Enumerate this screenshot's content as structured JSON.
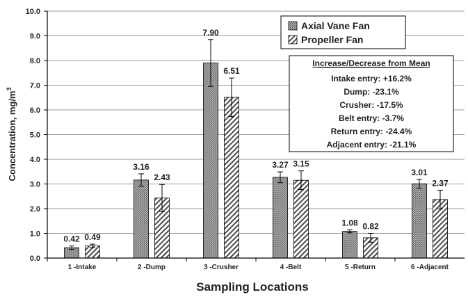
{
  "chart_data": {
    "type": "bar",
    "categories": [
      "1 -Intake",
      "2 -Dump",
      "3 -Crusher",
      "4 -Belt",
      "5 -Return",
      "6 -Adjacent"
    ],
    "series": [
      {
        "name": "Axial Vane Fan",
        "values": [
          0.42,
          3.16,
          7.9,
          3.27,
          1.08,
          3.01
        ],
        "value_labels": [
          "0.42",
          "3.16",
          "7.90",
          "3.27",
          "1.08",
          "3.01"
        ],
        "error_bars": [
          0.07,
          0.25,
          0.95,
          0.22,
          0.06,
          0.18
        ],
        "pattern": "dense-dots"
      },
      {
        "name": "Propeller Fan",
        "values": [
          0.49,
          2.43,
          6.51,
          3.15,
          0.82,
          2.37
        ],
        "value_labels": [
          "0.49",
          "2.43",
          "6.51",
          "3.15",
          "0.82",
          "2.37"
        ],
        "error_bars": [
          0.07,
          0.55,
          0.78,
          0.38,
          0.18,
          0.38
        ],
        "pattern": "diagonal-hatch"
      }
    ],
    "title": "",
    "xlabel": "Sampling Locations",
    "ylabel": "Concentration, mg/m",
    "ylabel_superscript": "3",
    "ylim": [
      0,
      10
    ],
    "y_ticks": [
      "0.0",
      "1.0",
      "2.0",
      "3.0",
      "4.0",
      "5.0",
      "6.0",
      "7.0",
      "8.0",
      "9.0",
      "10.0"
    ],
    "grid": true,
    "legend_position": "top-right",
    "annotation_box": {
      "title": "Increase/Decrease from Mean",
      "lines": [
        "Intake entry:  +16.2%",
        "Dump:  -23.1%",
        "Crusher:  -17.5%",
        "Belt entry:  -3.7%",
        "Return entry:  -24.4%",
        "Adjacent entry:  -21.1%"
      ]
    }
  }
}
